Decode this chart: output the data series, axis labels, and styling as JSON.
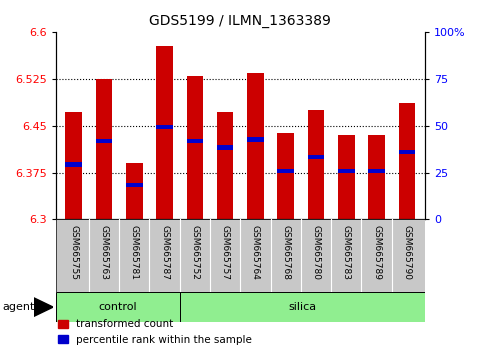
{
  "title": "GDS5199 / ILMN_1363389",
  "samples": [
    "GSM665755",
    "GSM665763",
    "GSM665781",
    "GSM665787",
    "GSM665752",
    "GSM665757",
    "GSM665764",
    "GSM665768",
    "GSM665780",
    "GSM665783",
    "GSM665789",
    "GSM665790"
  ],
  "groups": [
    "control",
    "control",
    "control",
    "control",
    "silica",
    "silica",
    "silica",
    "silica",
    "silica",
    "silica",
    "silica",
    "silica"
  ],
  "bar_tops": [
    6.472,
    6.525,
    6.39,
    6.578,
    6.53,
    6.472,
    6.535,
    6.438,
    6.475,
    6.435,
    6.435,
    6.487
  ],
  "bar_bottom": 6.3,
  "blue_markers": [
    6.388,
    6.425,
    6.355,
    6.448,
    6.425,
    6.415,
    6.428,
    6.378,
    6.4,
    6.378,
    6.378,
    6.408
  ],
  "ylim_left": [
    6.3,
    6.6
  ],
  "ylim_right": [
    0,
    100
  ],
  "yticks_left": [
    6.3,
    6.375,
    6.45,
    6.525,
    6.6
  ],
  "yticks_right": [
    0,
    25,
    50,
    75,
    100
  ],
  "ytick_right_labels": [
    "0",
    "25",
    "50",
    "75",
    "100%"
  ],
  "bar_color": "#cc0000",
  "marker_color": "#0000cc",
  "green_color": "#90ee90",
  "gray_color": "#c8c8c8",
  "agent_label": "agent",
  "control_label": "control",
  "silica_label": "silica",
  "legend_red_label": "transformed count",
  "legend_blue_label": "percentile rank within the sample",
  "bar_width": 0.55,
  "n_control": 4,
  "n_silica": 8,
  "grid_ticks": [
    6.375,
    6.45,
    6.525
  ],
  "figsize": [
    4.83,
    3.54
  ],
  "dpi": 100
}
